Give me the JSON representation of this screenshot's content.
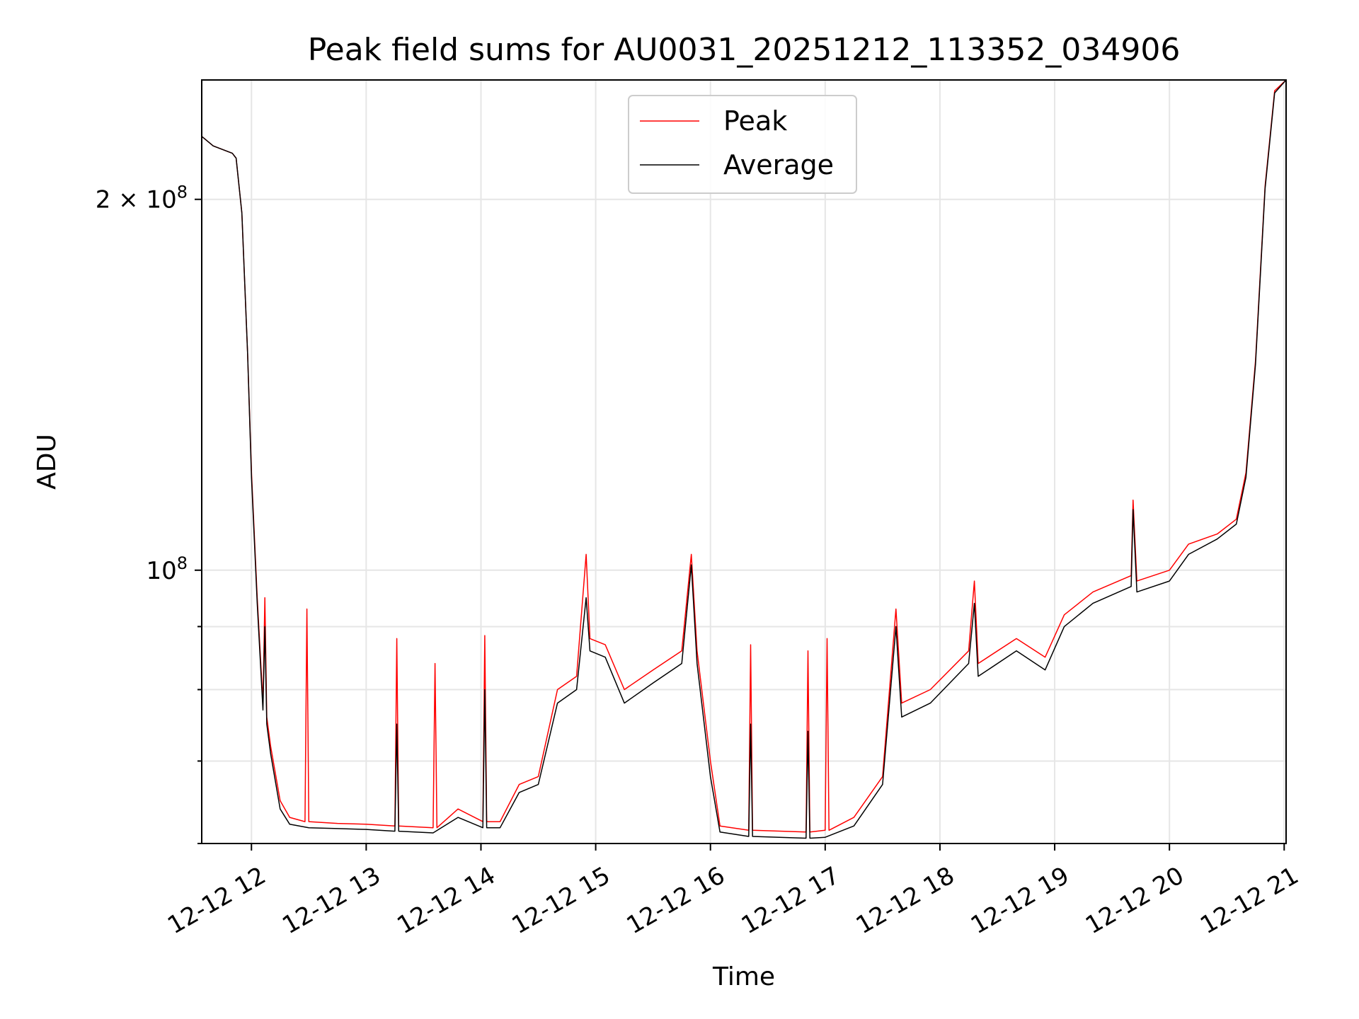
{
  "chart_data": {
    "type": "line",
    "title": "Peak field sums for AU0031_20251212_113352_034906",
    "xlabel": "Time",
    "ylabel": "ADU",
    "y_scale": "log",
    "grid": true,
    "legend_position": "top-center",
    "x_range": [
      "2025-12-12T11:34",
      "2025-12-12T21:01"
    ],
    "ylim": [
      60000000,
      250000000
    ],
    "x_ticks": [
      {
        "value": "2025-12-12T12:00",
        "label": "12-12 12"
      },
      {
        "value": "2025-12-12T13:00",
        "label": "12-12 13"
      },
      {
        "value": "2025-12-12T14:00",
        "label": "12-12 14"
      },
      {
        "value": "2025-12-12T15:00",
        "label": "12-12 15"
      },
      {
        "value": "2025-12-12T16:00",
        "label": "12-12 16"
      },
      {
        "value": "2025-12-12T17:00",
        "label": "12-12 17"
      },
      {
        "value": "2025-12-12T18:00",
        "label": "12-12 18"
      },
      {
        "value": "2025-12-12T19:00",
        "label": "12-12 19"
      },
      {
        "value": "2025-12-12T20:00",
        "label": "12-12 20"
      },
      {
        "value": "2025-12-12T21:00",
        "label": "12-12 21"
      }
    ],
    "y_major_ticks": [
      {
        "value": 100000000,
        "label_base": "10",
        "label_exp": "8"
      },
      {
        "value": 200000000,
        "label_base": "2 × 10",
        "label_exp": "8"
      }
    ],
    "y_minor_ticks": [
      60000000,
      70000000,
      80000000,
      90000000
    ],
    "series": [
      {
        "name": "Peak",
        "color": "#ff0000",
        "points": [
          [
            "2025-12-12T11:34",
            225000000
          ],
          [
            "2025-12-12T11:40",
            221000000
          ],
          [
            "2025-12-12T11:50",
            218000000
          ],
          [
            "2025-12-12T11:52",
            216000000
          ],
          [
            "2025-12-12T11:55",
            195000000
          ],
          [
            "2025-12-12T11:58",
            150000000
          ],
          [
            "2025-12-12T12:00",
            120000000
          ],
          [
            "2025-12-12T12:03",
            95000000
          ],
          [
            "2025-12-12T12:06",
            78000000
          ],
          [
            "2025-12-12T12:07",
            95000000
          ],
          [
            "2025-12-12T12:08",
            76000000
          ],
          [
            "2025-12-12T12:10",
            72000000
          ],
          [
            "2025-12-12T12:15",
            65000000
          ],
          [
            "2025-12-12T12:20",
            63000000
          ],
          [
            "2025-12-12T12:28",
            62500000
          ],
          [
            "2025-12-12T12:29",
            93000000
          ],
          [
            "2025-12-12T12:30",
            62500000
          ],
          [
            "2025-12-12T12:45",
            62300000
          ],
          [
            "2025-12-12T13:00",
            62200000
          ],
          [
            "2025-12-12T13:15",
            62000000
          ],
          [
            "2025-12-12T13:16",
            88000000
          ],
          [
            "2025-12-12T13:17",
            62000000
          ],
          [
            "2025-12-12T13:35",
            61800000
          ],
          [
            "2025-12-12T13:36",
            84000000
          ],
          [
            "2025-12-12T13:37",
            61800000
          ],
          [
            "2025-12-12T13:48",
            64000000
          ],
          [
            "2025-12-12T14:01",
            62500000
          ],
          [
            "2025-12-12T14:02",
            88500000
          ],
          [
            "2025-12-12T14:03",
            62500000
          ],
          [
            "2025-12-12T14:10",
            62500000
          ],
          [
            "2025-12-12T14:20",
            67000000
          ],
          [
            "2025-12-12T14:30",
            68000000
          ],
          [
            "2025-12-12T14:40",
            80000000
          ],
          [
            "2025-12-12T14:50",
            82000000
          ],
          [
            "2025-12-12T14:55",
            103000000
          ],
          [
            "2025-12-12T14:57",
            88000000
          ],
          [
            "2025-12-12T15:05",
            87000000
          ],
          [
            "2025-12-12T15:15",
            80000000
          ],
          [
            "2025-12-12T15:30",
            83000000
          ],
          [
            "2025-12-12T15:45",
            86000000
          ],
          [
            "2025-12-12T15:50",
            103000000
          ],
          [
            "2025-12-12T15:53",
            86000000
          ],
          [
            "2025-12-12T16:00",
            70000000
          ],
          [
            "2025-12-12T16:05",
            62000000
          ],
          [
            "2025-12-12T16:20",
            61500000
          ],
          [
            "2025-12-12T16:21",
            87000000
          ],
          [
            "2025-12-12T16:22",
            61500000
          ],
          [
            "2025-12-12T16:50",
            61300000
          ],
          [
            "2025-12-12T16:51",
            86000000
          ],
          [
            "2025-12-12T16:52",
            61300000
          ],
          [
            "2025-12-12T17:00",
            61500000
          ],
          [
            "2025-12-12T17:01",
            88000000
          ],
          [
            "2025-12-12T17:02",
            61500000
          ],
          [
            "2025-12-12T17:15",
            63000000
          ],
          [
            "2025-12-12T17:30",
            68000000
          ],
          [
            "2025-12-12T17:37",
            93000000
          ],
          [
            "2025-12-12T17:40",
            78000000
          ],
          [
            "2025-12-12T17:55",
            80000000
          ],
          [
            "2025-12-12T18:15",
            86000000
          ],
          [
            "2025-12-12T18:18",
            98000000
          ],
          [
            "2025-12-12T18:20",
            84000000
          ],
          [
            "2025-12-12T18:40",
            88000000
          ],
          [
            "2025-12-12T18:55",
            85000000
          ],
          [
            "2025-12-12T19:05",
            92000000
          ],
          [
            "2025-12-12T19:20",
            96000000
          ],
          [
            "2025-12-12T19:40",
            99000000
          ],
          [
            "2025-12-12T19:41",
            114000000
          ],
          [
            "2025-12-12T19:43",
            98000000
          ],
          [
            "2025-12-12T20:00",
            100000000
          ],
          [
            "2025-12-12T20:10",
            105000000
          ],
          [
            "2025-12-12T20:25",
            107000000
          ],
          [
            "2025-12-12T20:35",
            110000000
          ],
          [
            "2025-12-12T20:40",
            120000000
          ],
          [
            "2025-12-12T20:45",
            148000000
          ],
          [
            "2025-12-12T20:50",
            205000000
          ],
          [
            "2025-12-12T20:55",
            245000000
          ],
          [
            "2025-12-12T21:01",
            250000000
          ]
        ]
      },
      {
        "name": "Average",
        "color": "#000000",
        "points": [
          [
            "2025-12-12T11:34",
            225000000
          ],
          [
            "2025-12-12T11:40",
            221000000
          ],
          [
            "2025-12-12T11:50",
            218000000
          ],
          [
            "2025-12-12T11:52",
            216000000
          ],
          [
            "2025-12-12T11:55",
            195000000
          ],
          [
            "2025-12-12T11:58",
            150000000
          ],
          [
            "2025-12-12T12:00",
            119000000
          ],
          [
            "2025-12-12T12:03",
            94000000
          ],
          [
            "2025-12-12T12:06",
            77000000
          ],
          [
            "2025-12-12T12:07",
            90000000
          ],
          [
            "2025-12-12T12:08",
            75000000
          ],
          [
            "2025-12-12T12:10",
            71000000
          ],
          [
            "2025-12-12T12:15",
            64000000
          ],
          [
            "2025-12-12T12:20",
            62200000
          ],
          [
            "2025-12-12T12:30",
            61800000
          ],
          [
            "2025-12-12T12:45",
            61700000
          ],
          [
            "2025-12-12T13:00",
            61600000
          ],
          [
            "2025-12-12T13:15",
            61400000
          ],
          [
            "2025-12-12T13:16",
            75000000
          ],
          [
            "2025-12-12T13:17",
            61400000
          ],
          [
            "2025-12-12T13:35",
            61200000
          ],
          [
            "2025-12-12T13:48",
            63000000
          ],
          [
            "2025-12-12T14:01",
            61800000
          ],
          [
            "2025-12-12T14:02",
            80000000
          ],
          [
            "2025-12-12T14:03",
            61800000
          ],
          [
            "2025-12-12T14:10",
            61800000
          ],
          [
            "2025-12-12T14:20",
            66000000
          ],
          [
            "2025-12-12T14:30",
            67000000
          ],
          [
            "2025-12-12T14:40",
            78000000
          ],
          [
            "2025-12-12T14:50",
            80000000
          ],
          [
            "2025-12-12T14:55",
            95000000
          ],
          [
            "2025-12-12T14:57",
            86000000
          ],
          [
            "2025-12-12T15:05",
            85000000
          ],
          [
            "2025-12-12T15:15",
            78000000
          ],
          [
            "2025-12-12T15:30",
            81000000
          ],
          [
            "2025-12-12T15:45",
            84000000
          ],
          [
            "2025-12-12T15:50",
            101000000
          ],
          [
            "2025-12-12T15:53",
            84000000
          ],
          [
            "2025-12-12T16:00",
            68000000
          ],
          [
            "2025-12-12T16:05",
            61300000
          ],
          [
            "2025-12-12T16:20",
            60800000
          ],
          [
            "2025-12-12T16:21",
            75000000
          ],
          [
            "2025-12-12T16:22",
            60800000
          ],
          [
            "2025-12-12T16:50",
            60600000
          ],
          [
            "2025-12-12T16:51",
            74000000
          ],
          [
            "2025-12-12T16:52",
            60600000
          ],
          [
            "2025-12-12T17:00",
            60700000
          ],
          [
            "2025-12-12T17:15",
            62000000
          ],
          [
            "2025-12-12T17:30",
            67000000
          ],
          [
            "2025-12-12T17:37",
            90000000
          ],
          [
            "2025-12-12T17:40",
            76000000
          ],
          [
            "2025-12-12T17:55",
            78000000
          ],
          [
            "2025-12-12T18:15",
            84000000
          ],
          [
            "2025-12-12T18:18",
            94000000
          ],
          [
            "2025-12-12T18:20",
            82000000
          ],
          [
            "2025-12-12T18:40",
            86000000
          ],
          [
            "2025-12-12T18:55",
            83000000
          ],
          [
            "2025-12-12T19:05",
            90000000
          ],
          [
            "2025-12-12T19:20",
            94000000
          ],
          [
            "2025-12-12T19:40",
            97000000
          ],
          [
            "2025-12-12T19:41",
            112000000
          ],
          [
            "2025-12-12T19:43",
            96000000
          ],
          [
            "2025-12-12T20:00",
            98000000
          ],
          [
            "2025-12-12T20:10",
            103000000
          ],
          [
            "2025-12-12T20:25",
            106000000
          ],
          [
            "2025-12-12T20:35",
            109000000
          ],
          [
            "2025-12-12T20:40",
            119000000
          ],
          [
            "2025-12-12T20:45",
            147000000
          ],
          [
            "2025-12-12T20:50",
            204000000
          ],
          [
            "2025-12-12T20:55",
            244000000
          ],
          [
            "2025-12-12T21:01",
            250000000
          ]
        ]
      }
    ]
  }
}
